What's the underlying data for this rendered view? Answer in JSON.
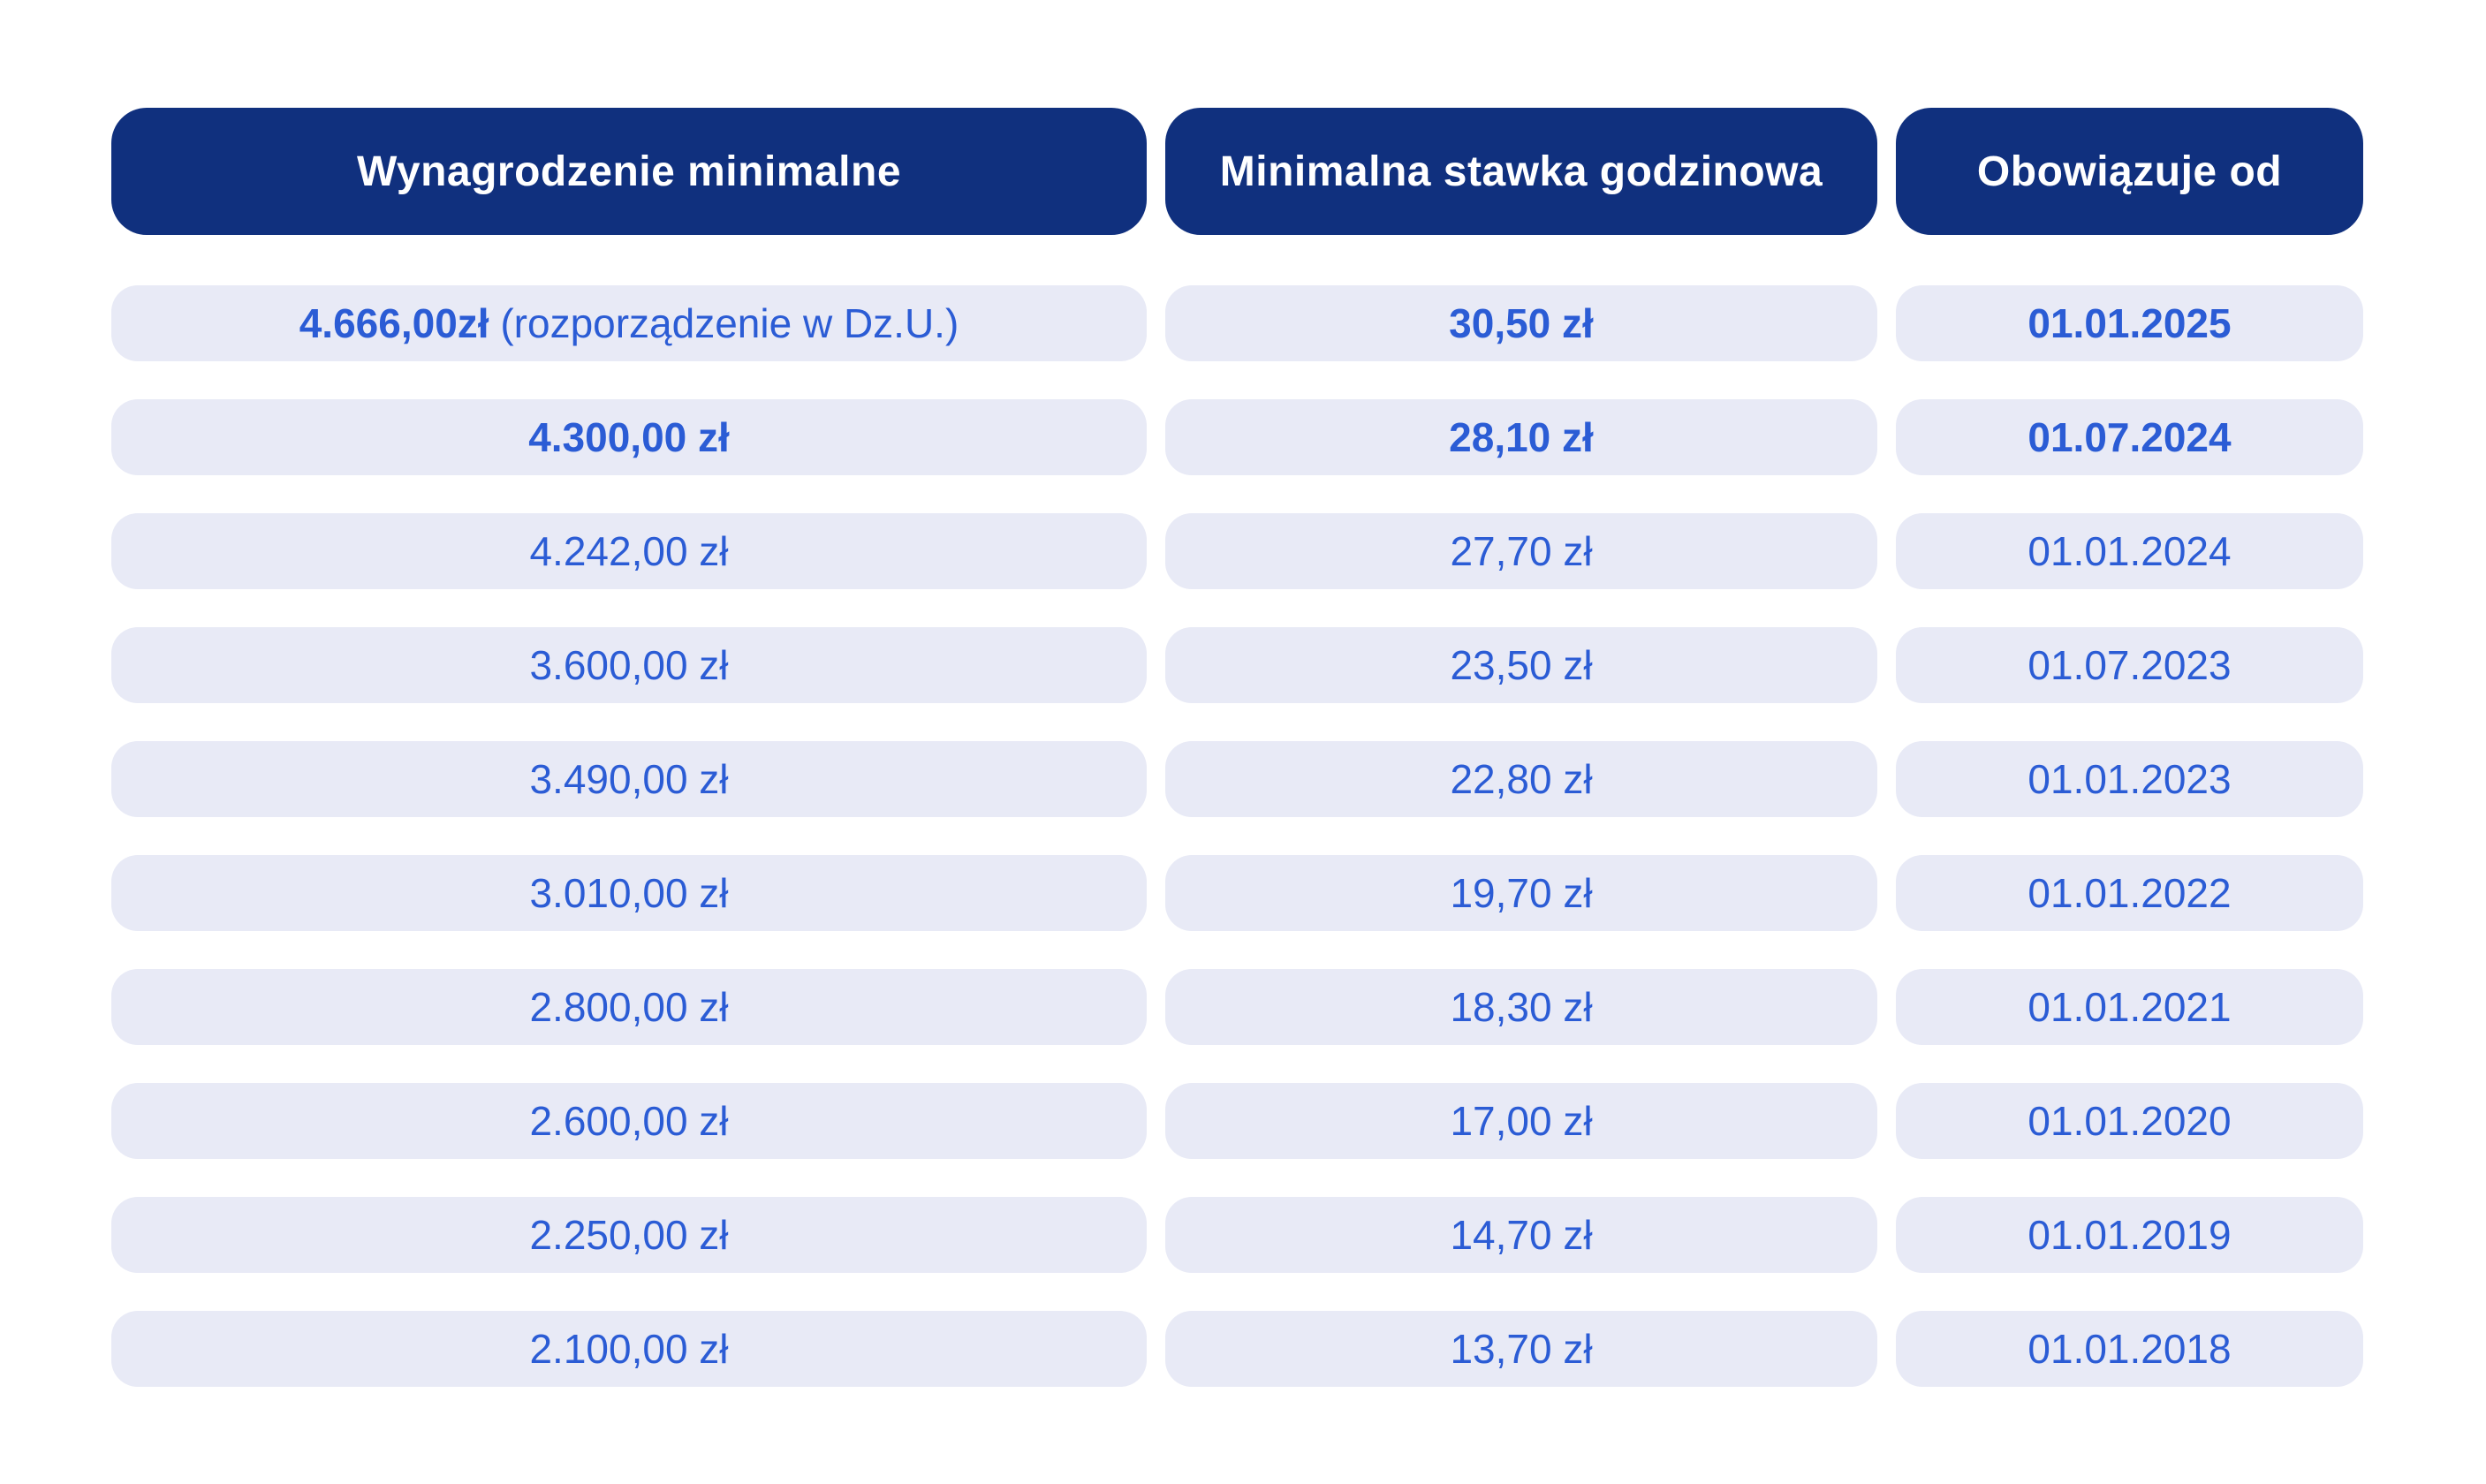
{
  "chart_data": {
    "type": "table",
    "columns": [
      "Wynagrodzenie minimalne",
      "Minimalna stawka godzinowa",
      "Obowiązuje od"
    ],
    "rows": [
      {
        "minimum_wage": "4.666,00zł",
        "minimum_wage_note": " (rozporządzenie w Dz.U.)",
        "hourly_rate": "30,50 zł",
        "effective_from": "01.01.2025",
        "emphasis": true
      },
      {
        "minimum_wage": "4.300,00 zł",
        "minimum_wage_note": "",
        "hourly_rate": "28,10 zł",
        "effective_from": "01.07.2024",
        "emphasis": true
      },
      {
        "minimum_wage": "4.242,00 zł",
        "minimum_wage_note": "",
        "hourly_rate": "27,70 zł",
        "effective_from": "01.01.2024",
        "emphasis": false
      },
      {
        "minimum_wage": "3.600,00 zł",
        "minimum_wage_note": "",
        "hourly_rate": "23,50 zł",
        "effective_from": "01.07.2023",
        "emphasis": false
      },
      {
        "minimum_wage": "3.490,00 zł",
        "minimum_wage_note": "",
        "hourly_rate": "22,80 zł",
        "effective_from": "01.01.2023",
        "emphasis": false
      },
      {
        "minimum_wage": "3.010,00 zł",
        "minimum_wage_note": "",
        "hourly_rate": "19,70 zł",
        "effective_from": "01.01.2022",
        "emphasis": false
      },
      {
        "minimum_wage": "2.800,00 zł",
        "minimum_wage_note": "",
        "hourly_rate": "18,30 zł",
        "effective_from": "01.01.2021",
        "emphasis": false
      },
      {
        "minimum_wage": "2.600,00 zł",
        "minimum_wage_note": "",
        "hourly_rate": "17,00 zł",
        "effective_from": "01.01.2020",
        "emphasis": false
      },
      {
        "minimum_wage": "2.250,00 zł",
        "minimum_wage_note": "",
        "hourly_rate": "14,70 zł",
        "effective_from": "01.01.2019",
        "emphasis": false
      },
      {
        "minimum_wage": "2.100,00 zł",
        "minimum_wage_note": "",
        "hourly_rate": "13,70 zł",
        "effective_from": "01.01.2018",
        "emphasis": false
      }
    ],
    "layout": {
      "grid": false,
      "legend": false,
      "header_style": "navy pill",
      "row_style": "lavender pill"
    }
  },
  "colors": {
    "header_bg": "#10307e",
    "header_text": "#ffffff",
    "cell_bg": "#e8eaf6",
    "cell_text": "#2b5cd5",
    "page_bg": "#ffffff"
  }
}
